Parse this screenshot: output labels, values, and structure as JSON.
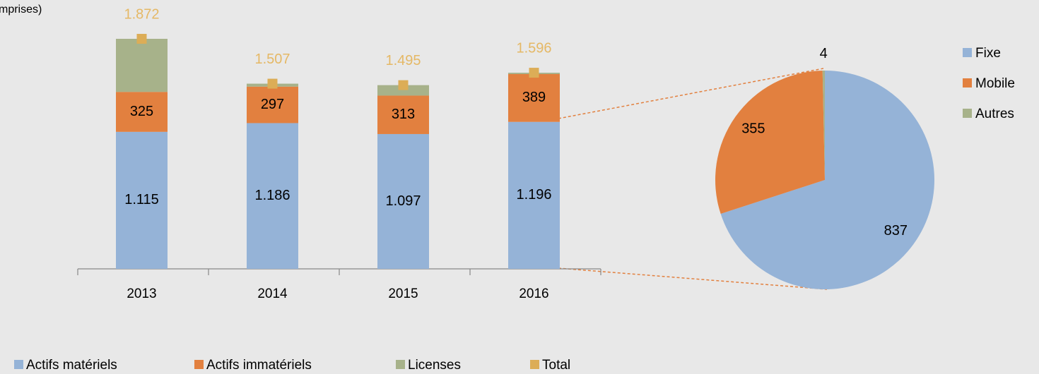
{
  "chart_data": [
    {
      "type": "bar",
      "stacked": true,
      "title": "mprises)",
      "legend": "bottom",
      "categories": [
        "2013",
        "2014",
        "2015",
        "2016"
      ],
      "series": [
        {
          "name": "Actifs matériels",
          "color": "#95b3d7",
          "values": [
            1115,
            1186,
            1097,
            1196
          ],
          "value_labels": [
            "1.115",
            "1.186",
            "1.097",
            "1.196"
          ]
        },
        {
          "name": "Actifs immatériels",
          "color": "#e2803f",
          "values": [
            325,
            297,
            313,
            389
          ]
        },
        {
          "name": "Licenses",
          "color": "#a7b28a",
          "values": [
            432,
            24,
            85,
            11
          ]
        },
        {
          "name": "Total",
          "type": "scatter",
          "marker": "square",
          "color": "#dcad57",
          "values": [
            1872,
            1507,
            1495,
            1596
          ],
          "value_labels": [
            "1.872",
            "1.507",
            "1.495",
            "1.596"
          ]
        }
      ]
    },
    {
      "type": "pie",
      "legend": "right",
      "categories": [
        "Fixe",
        "Mobile",
        "Autres"
      ],
      "values": [
        837,
        355,
        4
      ],
      "colors": [
        "#95b3d7",
        "#e2803f",
        "#a7b28a"
      ]
    }
  ]
}
